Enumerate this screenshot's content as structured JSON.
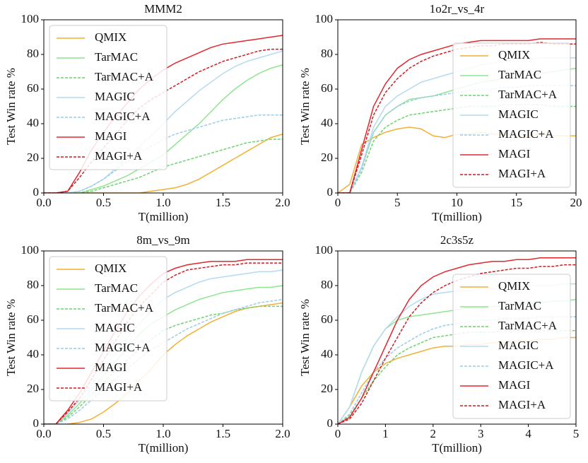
{
  "chart_data": [
    {
      "type": "line",
      "title": "MMM2",
      "xlabel": "T(million)",
      "ylabel": "Test Win rate %",
      "x": [
        0,
        0.1,
        0.2,
        0.3,
        0.4,
        0.5,
        0.6,
        0.7,
        0.8,
        0.9,
        1.0,
        1.1,
        1.2,
        1.3,
        1.4,
        1.5,
        1.6,
        1.7,
        1.8,
        1.9,
        2.0
      ],
      "xlim": [
        0,
        2
      ],
      "xticks": [
        {
          "value": 0,
          "label": "0.0"
        },
        0.5,
        {
          "value": 1,
          "label": "1.0"
        },
        1.5,
        {
          "value": 2,
          "label": "2.0"
        }
      ],
      "ylim": [
        0,
        100
      ],
      "yticks": [
        0,
        20,
        40,
        60,
        80,
        100
      ],
      "legend": "upper left",
      "series": [
        {
          "name": "QMIX",
          "color": "#f2b035",
          "style": "solid",
          "values": [
            0,
            0,
            0,
            0,
            0,
            0,
            0,
            0,
            0,
            1,
            2,
            3,
            5,
            8,
            12,
            16,
            20,
            24,
            28,
            32,
            34
          ]
        },
        {
          "name": "TarMAC",
          "color": "#8fe58f",
          "style": "solid",
          "values": [
            0,
            0,
            0,
            0,
            2,
            4,
            7,
            10,
            14,
            18,
            22,
            28,
            34,
            40,
            47,
            54,
            60,
            65,
            69,
            72,
            74
          ]
        },
        {
          "name": "TarMAC+A",
          "color": "#6dd46d",
          "style": "dashed",
          "values": [
            0,
            0,
            0,
            0,
            1,
            3,
            5,
            7,
            9,
            12,
            15,
            17,
            19,
            21,
            23,
            25,
            27,
            29,
            30,
            31,
            31
          ]
        },
        {
          "name": "MAGIC",
          "color": "#b4daf0",
          "style": "solid",
          "values": [
            0,
            0,
            0,
            1,
            4,
            8,
            14,
            20,
            27,
            33,
            40,
            47,
            53,
            59,
            64,
            69,
            73,
            76,
            78,
            80,
            82
          ]
        },
        {
          "name": "MAGIC+A",
          "color": "#9ccbea",
          "style": "dashed",
          "values": [
            0,
            0,
            0,
            1,
            4,
            8,
            13,
            18,
            23,
            27,
            31,
            34,
            36,
            38,
            40,
            42,
            43,
            44,
            45,
            45,
            45
          ]
        },
        {
          "name": "MAGI",
          "color": "#e0282e",
          "style": "solid",
          "values": [
            0,
            0,
            1,
            12,
            25,
            35,
            44,
            52,
            60,
            66,
            71,
            75,
            78,
            81,
            84,
            86,
            87,
            88,
            89,
            90,
            91
          ]
        },
        {
          "name": "MAGI+A",
          "color": "#d01c22",
          "style": "dashed",
          "values": [
            0,
            0,
            1,
            9,
            18,
            26,
            34,
            42,
            49,
            54,
            58,
            62,
            66,
            70,
            73,
            76,
            78,
            80,
            82,
            83,
            83
          ]
        }
      ]
    },
    {
      "type": "line",
      "title": "1o2r_vs_4r",
      "xlabel": "T(million)",
      "ylabel": "Test Win rate %",
      "x": [
        0,
        1,
        2,
        3,
        4,
        5,
        6,
        7,
        8,
        9,
        10,
        11,
        12,
        13,
        14,
        15,
        16,
        17,
        18,
        19,
        20
      ],
      "xlim": [
        0,
        20
      ],
      "xticks": [
        0,
        5,
        10,
        15,
        20
      ],
      "ylim": [
        0,
        100
      ],
      "yticks": [
        0,
        20,
        40,
        60,
        80,
        100
      ],
      "legend": "lower right",
      "series": [
        {
          "name": "QMIX",
          "color": "#f2b035",
          "style": "solid",
          "values": [
            0,
            5,
            28,
            32,
            35,
            37,
            38,
            37,
            33,
            32,
            34,
            34,
            35,
            34,
            34,
            33,
            33,
            34,
            33,
            33,
            33
          ]
        },
        {
          "name": "TarMAC",
          "color": "#8fe58f",
          "style": "solid",
          "values": [
            0,
            0,
            15,
            35,
            45,
            50,
            54,
            55,
            56,
            58,
            60,
            62,
            64,
            65,
            66,
            67,
            68,
            69,
            70,
            71,
            72
          ]
        },
        {
          "name": "TarMAC+A",
          "color": "#6dd46d",
          "style": "dashed",
          "values": [
            0,
            0,
            12,
            30,
            38,
            42,
            45,
            46,
            47,
            48,
            49,
            50,
            50,
            50,
            51,
            51,
            51,
            51,
            50,
            50,
            50
          ]
        },
        {
          "name": "MAGIC",
          "color": "#b4daf0",
          "style": "solid",
          "values": [
            0,
            0,
            15,
            38,
            50,
            56,
            60,
            64,
            66,
            68,
            70,
            72,
            74,
            75,
            76,
            77,
            77,
            78,
            78,
            78,
            78
          ]
        },
        {
          "name": "MAGIC+A",
          "color": "#9ccbea",
          "style": "dashed",
          "values": [
            0,
            0,
            14,
            35,
            45,
            50,
            53,
            55,
            56,
            57,
            58,
            59,
            60,
            60,
            61,
            61,
            62,
            62,
            62,
            62,
            62
          ]
        },
        {
          "name": "MAGI",
          "color": "#e0282e",
          "style": "solid",
          "values": [
            0,
            0,
            25,
            50,
            63,
            72,
            77,
            80,
            82,
            84,
            86,
            87,
            88,
            88,
            88,
            88,
            88,
            89,
            89,
            89,
            89
          ]
        },
        {
          "name": "MAGI+A",
          "color": "#d01c22",
          "style": "dashed",
          "values": [
            0,
            0,
            22,
            45,
            58,
            66,
            72,
            76,
            79,
            81,
            83,
            84,
            85,
            85,
            86,
            86,
            86,
            87,
            86,
            86,
            86
          ]
        }
      ]
    },
    {
      "type": "line",
      "title": "8m_vs_9m",
      "xlabel": "T(million)",
      "ylabel": "Test Win rate %",
      "x": [
        0,
        0.1,
        0.2,
        0.3,
        0.4,
        0.5,
        0.6,
        0.7,
        0.8,
        0.9,
        1.0,
        1.1,
        1.2,
        1.3,
        1.4,
        1.5,
        1.6,
        1.7,
        1.8,
        1.9,
        2.0
      ],
      "xlim": [
        0,
        2
      ],
      "xticks": [
        {
          "value": 0,
          "label": "0.0"
        },
        0.5,
        {
          "value": 1,
          "label": "1.0"
        },
        1.5,
        {
          "value": 2,
          "label": "2.0"
        }
      ],
      "ylim": [
        0,
        100
      ],
      "yticks": [
        0,
        20,
        40,
        60,
        80,
        100
      ],
      "legend": "upper left",
      "series": [
        {
          "name": "QMIX",
          "color": "#f2b035",
          "style": "solid",
          "values": [
            0,
            0,
            0,
            1,
            3,
            7,
            12,
            18,
            25,
            32,
            40,
            46,
            51,
            55,
            59,
            62,
            65,
            67,
            68,
            69,
            70
          ]
        },
        {
          "name": "TarMAC",
          "color": "#8fe58f",
          "style": "solid",
          "values": [
            0,
            0,
            5,
            12,
            20,
            28,
            36,
            44,
            52,
            58,
            62,
            66,
            69,
            72,
            74,
            76,
            77,
            78,
            79,
            79,
            80
          ]
        },
        {
          "name": "TarMAC+A",
          "color": "#6dd46d",
          "style": "dashed",
          "values": [
            0,
            0,
            4,
            10,
            17,
            24,
            31,
            37,
            43,
            49,
            54,
            57,
            59,
            61,
            63,
            64,
            66,
            67,
            68,
            68,
            68
          ]
        },
        {
          "name": "MAGIC",
          "color": "#b4daf0",
          "style": "solid",
          "values": [
            0,
            0,
            6,
            14,
            23,
            32,
            41,
            50,
            58,
            65,
            72,
            76,
            79,
            82,
            84,
            85,
            86,
            87,
            88,
            88,
            89
          ]
        },
        {
          "name": "MAGIC+A",
          "color": "#9ccbea",
          "style": "dashed",
          "values": [
            0,
            0,
            3,
            8,
            14,
            20,
            26,
            32,
            38,
            43,
            47,
            51,
            55,
            58,
            61,
            64,
            66,
            68,
            70,
            71,
            72
          ]
        },
        {
          "name": "MAGI",
          "color": "#e0282e",
          "style": "solid",
          "values": [
            0,
            0,
            8,
            18,
            30,
            42,
            54,
            65,
            74,
            81,
            87,
            90,
            92,
            93,
            94,
            94,
            94,
            95,
            95,
            95,
            95
          ]
        },
        {
          "name": "MAGI+A",
          "color": "#d01c22",
          "style": "dashed",
          "values": [
            0,
            0,
            7,
            15,
            26,
            37,
            48,
            59,
            68,
            75,
            82,
            86,
            89,
            90,
            91,
            92,
            92,
            93,
            93,
            93,
            93
          ]
        }
      ]
    },
    {
      "type": "line",
      "title": "2c3s5z",
      "xlabel": "T(million)",
      "ylabel": "Test Win rate %",
      "x": [
        0,
        0.25,
        0.5,
        0.75,
        1,
        1.25,
        1.5,
        1.75,
        2,
        2.25,
        2.5,
        2.75,
        3,
        3.25,
        3.5,
        3.75,
        4,
        4.25,
        4.5,
        4.75,
        5
      ],
      "xlim": [
        0,
        5
      ],
      "xticks": [
        0,
        1,
        2,
        3,
        4,
        5
      ],
      "ylim": [
        0,
        100
      ],
      "yticks": [
        0,
        20,
        40,
        60,
        80,
        100
      ],
      "legend": "lower right",
      "series": [
        {
          "name": "QMIX",
          "color": "#f2b035",
          "style": "solid",
          "values": [
            0,
            10,
            22,
            30,
            35,
            38,
            40,
            42,
            44,
            45,
            45,
            46,
            46,
            47,
            47,
            48,
            48,
            49,
            49,
            50,
            50
          ]
        },
        {
          "name": "TarMAC",
          "color": "#8fe58f",
          "style": "solid",
          "values": [
            0,
            10,
            30,
            45,
            55,
            60,
            62,
            63,
            64,
            65,
            66,
            67,
            67,
            68,
            68,
            69,
            70,
            70,
            71,
            71,
            72
          ]
        },
        {
          "name": "TarMAC+A",
          "color": "#6dd46d",
          "style": "dashed",
          "values": [
            0,
            5,
            15,
            25,
            33,
            40,
            44,
            47,
            50,
            51,
            52,
            53,
            53,
            53,
            54,
            54,
            54,
            54,
            54,
            54,
            54
          ]
        },
        {
          "name": "MAGIC",
          "color": "#b4daf0",
          "style": "solid",
          "values": [
            0,
            10,
            30,
            45,
            55,
            62,
            68,
            72,
            75,
            76,
            77,
            77,
            78,
            78,
            79,
            79,
            80,
            80,
            80,
            81,
            81
          ]
        },
        {
          "name": "MAGIC+A",
          "color": "#9ccbea",
          "style": "dashed",
          "values": [
            0,
            6,
            18,
            30,
            38,
            44,
            48,
            52,
            55,
            57,
            58,
            59,
            60,
            60,
            61,
            61,
            61,
            62,
            62,
            62,
            62
          ]
        },
        {
          "name": "MAGI",
          "color": "#e0282e",
          "style": "solid",
          "values": [
            0,
            4,
            15,
            30,
            45,
            60,
            72,
            80,
            85,
            88,
            90,
            92,
            93,
            94,
            94,
            95,
            95,
            96,
            96,
            96,
            96
          ]
        },
        {
          "name": "MAGI+A",
          "color": "#d01c22",
          "style": "dashed",
          "values": [
            0,
            3,
            12,
            25,
            38,
            50,
            62,
            70,
            76,
            80,
            83,
            85,
            87,
            88,
            89,
            90,
            90,
            91,
            91,
            92,
            92
          ]
        }
      ]
    }
  ]
}
